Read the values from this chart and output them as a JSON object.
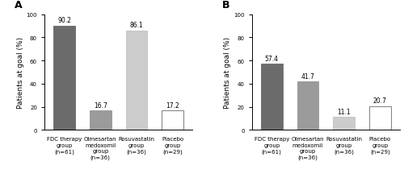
{
  "panel_A": {
    "label": "A",
    "values": [
      90.2,
      16.7,
      86.1,
      17.2
    ],
    "ylim": [
      0,
      100
    ],
    "yticks": [
      0,
      20,
      40,
      60,
      80,
      100
    ]
  },
  "panel_B": {
    "label": "B",
    "values": [
      57.4,
      41.7,
      11.1,
      20.7
    ],
    "ylim": [
      0,
      100
    ],
    "yticks": [
      0,
      20,
      40,
      60,
      80,
      100
    ]
  },
  "categories": [
    "FDC therapy\ngroup\n(n=61)",
    "Olmesartan\nmedoxomil\ngroup\n(n=36)",
    "Rosuvastatin\ngroup\n(n=36)",
    "Placebo\ngroup\n(n=29)"
  ],
  "bar_colors": [
    "#6b6b6b",
    "#9b9b9b",
    "#cccccc",
    "#ffffff"
  ],
  "bar_edgecolors": [
    "#5a5a5a",
    "#8a8a8a",
    "#bbbbbb",
    "#888888"
  ],
  "ylabel": "Patients at goal (%)",
  "value_fontsize": 5.5,
  "ylabel_fontsize": 6.5,
  "tick_fontsize": 5.0,
  "panel_label_fontsize": 9
}
